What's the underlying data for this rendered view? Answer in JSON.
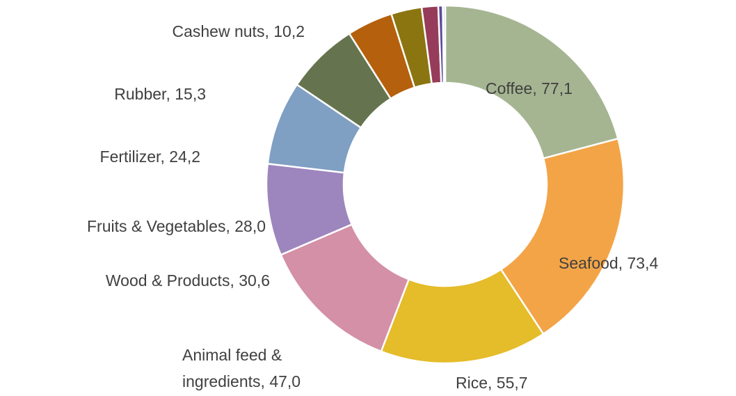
{
  "chart_data": {
    "type": "donut",
    "categories": [
      "Coffee",
      "Seafood",
      "Rice",
      "Animal feed & ingredients",
      "Wood & Products",
      "Fruits & Vegetables",
      "Fertilizer",
      "Rubber",
      "Cashew nuts",
      null,
      null,
      null
    ],
    "values": [
      77.1,
      73.4,
      55.7,
      47.0,
      30.6,
      28.0,
      24.2,
      15.3,
      10.2,
      5.5,
      1.5,
      0.8
    ],
    "value_labels": [
      "77,1",
      "73,4",
      "55,7",
      "47,0",
      "30,6",
      "28,0",
      "24,2",
      "15,3",
      "10,2",
      null,
      null,
      null
    ],
    "colors": [
      "#a5b592",
      "#f3a447",
      "#e5bc29",
      "#d390a7",
      "#9d85be",
      "#7f9fc3",
      "#65744e",
      "#b5600c",
      "#8b7510",
      "#963c5a",
      "#5b4a9a",
      "#c8d0e8"
    ]
  }
}
